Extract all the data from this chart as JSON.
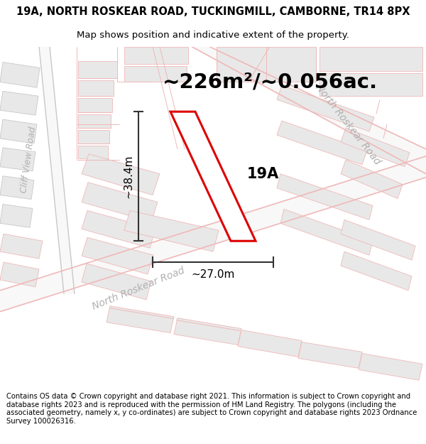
{
  "title_line1": "19A, NORTH ROSKEAR ROAD, TUCKINGMILL, CAMBORNE, TR14 8PX",
  "title_line2": "Map shows position and indicative extent of the property.",
  "area_text": "~226m²/~0.056ac.",
  "label_19A": "19A",
  "dim_height": "~38.4m",
  "dim_width": "~27.0m",
  "road_label_lower": "North Roskear Road",
  "road_label_upper": "North Roskear Road",
  "road_label_left": "Cliff View Road",
  "footer": "Contains OS data © Crown copyright and database right 2021. This information is subject to Crown copyright and database rights 2023 and is reproduced with the permission of HM Land Registry. The polygons (including the associated geometry, namely x, y co-ordinates) are subject to Crown copyright and database rights 2023 Ordnance Survey 100026316.",
  "bg_color": "#ffffff",
  "map_bg": "#ffffff",
  "road_line_color": "#f0b8b8",
  "gray_line_color": "#c8c8c8",
  "block_fill": "#e8e8e8",
  "block_edge": "#b0b0b0",
  "highlight_color": "#dd0000",
  "dim_line_color": "#333333",
  "road_text_color": "#aaaaaa",
  "title_fontsize": 10.5,
  "subtitle_fontsize": 9.5,
  "area_fontsize": 21,
  "label_fontsize": 15,
  "dim_fontsize": 11,
  "road_fontsize": 10,
  "footer_fontsize": 7.2
}
